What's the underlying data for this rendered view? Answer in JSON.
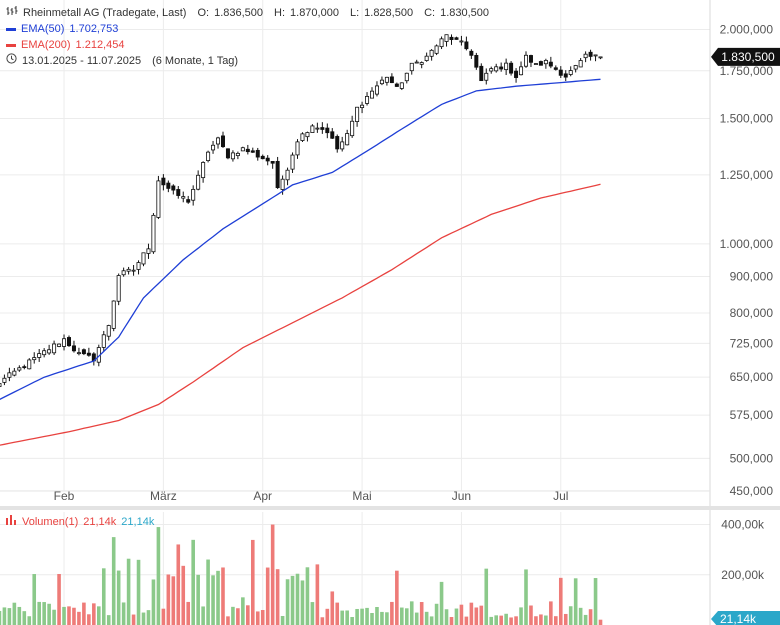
{
  "legend": {
    "title": "Rheinmetall AG (Tradegate, Last)",
    "o_label": "O:",
    "o_value": "1.836,500",
    "h_label": "H:",
    "h_value": "1.870,000",
    "l_label": "L:",
    "l_value": "1.828,500",
    "c_label": "C:",
    "c_value": "1.830,500",
    "ema50_label": "EMA(50)",
    "ema50_value": "1.702,753",
    "ema50_color": "#1f3fd6",
    "ema200_label": "EMA(200)",
    "ema200_value": "1.212,454",
    "ema200_color": "#e8423f",
    "range": "13.01.2025 - 11.07.2025",
    "range_detail": "(6 Monate, 1 Tag)"
  },
  "volume_legend": {
    "label": "Volumen(1)",
    "value_red": "21,14k",
    "value_green": "21,14k",
    "current_badge": "21,14k"
  },
  "chart_data": {
    "type": "candlestick",
    "price_axis": {
      "scale": "log",
      "range": [
        430,
        2200
      ],
      "ticks": [
        {
          "value": 2000,
          "label": "2.000,000"
        },
        {
          "value": 1750,
          "label": "1.750,000"
        },
        {
          "value": 1500,
          "label": "1.500,000"
        },
        {
          "value": 1250,
          "label": "1.250,000"
        },
        {
          "value": 1000,
          "label": "1.000,000"
        },
        {
          "value": 900,
          "label": "900,000"
        },
        {
          "value": 800,
          "label": "800,000"
        },
        {
          "value": 725,
          "label": "725,000"
        },
        {
          "value": 650,
          "label": "650,000"
        },
        {
          "value": 575,
          "label": "575,000"
        },
        {
          "value": 500,
          "label": "500,000"
        },
        {
          "value": 450,
          "label": "450,000"
        }
      ],
      "current_price_label": "1.830,500",
      "current_price": 1830.5
    },
    "x_axis": {
      "months": [
        {
          "label": "Feb",
          "index": 14
        },
        {
          "label": "März",
          "index": 34
        },
        {
          "label": "Apr",
          "index": 54
        },
        {
          "label": "Mai",
          "index": 74
        },
        {
          "label": "Jun",
          "index": 94
        },
        {
          "label": "Jul",
          "index": 114
        }
      ],
      "n_days": 123
    },
    "volume_axis": {
      "range": [
        0,
        450000
      ],
      "ticks": [
        {
          "value": 400000,
          "label": "400,00k"
        },
        {
          "value": 200000,
          "label": "200,00k"
        }
      ]
    },
    "anchors": [
      {
        "i": 0,
        "p": 632
      },
      {
        "i": 5,
        "p": 668
      },
      {
        "i": 10,
        "p": 705
      },
      {
        "i": 14,
        "p": 735
      },
      {
        "i": 17,
        "p": 700
      },
      {
        "i": 20,
        "p": 690
      },
      {
        "i": 23,
        "p": 770
      },
      {
        "i": 25,
        "p": 905
      },
      {
        "i": 28,
        "p": 920
      },
      {
        "i": 31,
        "p": 990
      },
      {
        "i": 33,
        "p": 1230
      },
      {
        "i": 36,
        "p": 1180
      },
      {
        "i": 39,
        "p": 1150
      },
      {
        "i": 41,
        "p": 1240
      },
      {
        "i": 43,
        "p": 1350
      },
      {
        "i": 45,
        "p": 1400
      },
      {
        "i": 47,
        "p": 1330
      },
      {
        "i": 50,
        "p": 1360
      },
      {
        "i": 53,
        "p": 1330
      },
      {
        "i": 56,
        "p": 1300
      },
      {
        "i": 57,
        "p": 1190
      },
      {
        "i": 59,
        "p": 1280
      },
      {
        "i": 61,
        "p": 1400
      },
      {
        "i": 64,
        "p": 1470
      },
      {
        "i": 67,
        "p": 1440
      },
      {
        "i": 69,
        "p": 1360
      },
      {
        "i": 71,
        "p": 1420
      },
      {
        "i": 73,
        "p": 1550
      },
      {
        "i": 76,
        "p": 1640
      },
      {
        "i": 79,
        "p": 1720
      },
      {
        "i": 81,
        "p": 1650
      },
      {
        "i": 84,
        "p": 1780
      },
      {
        "i": 87,
        "p": 1830
      },
      {
        "i": 89,
        "p": 1900
      },
      {
        "i": 91,
        "p": 1960
      },
      {
        "i": 94,
        "p": 1910
      },
      {
        "i": 96,
        "p": 1850
      },
      {
        "i": 98,
        "p": 1690
      },
      {
        "i": 100,
        "p": 1760
      },
      {
        "i": 103,
        "p": 1780
      },
      {
        "i": 105,
        "p": 1720
      },
      {
        "i": 107,
        "p": 1830
      },
      {
        "i": 109,
        "p": 1780
      },
      {
        "i": 111,
        "p": 1800
      },
      {
        "i": 113,
        "p": 1760
      },
      {
        "i": 115,
        "p": 1720
      },
      {
        "i": 117,
        "p": 1770
      },
      {
        "i": 119,
        "p": 1830
      },
      {
        "i": 122,
        "p": 1830.5
      }
    ],
    "ema50": [
      {
        "i": 0,
        "p": 600
      },
      {
        "i": 10,
        "p": 650
      },
      {
        "i": 20,
        "p": 685
      },
      {
        "i": 25,
        "p": 740
      },
      {
        "i": 30,
        "p": 840
      },
      {
        "i": 38,
        "p": 950
      },
      {
        "i": 46,
        "p": 1050
      },
      {
        "i": 55,
        "p": 1150
      },
      {
        "i": 60,
        "p": 1210
      },
      {
        "i": 68,
        "p": 1260
      },
      {
        "i": 75,
        "p": 1350
      },
      {
        "i": 82,
        "p": 1450
      },
      {
        "i": 90,
        "p": 1570
      },
      {
        "i": 97,
        "p": 1640
      },
      {
        "i": 105,
        "p": 1665
      },
      {
        "i": 112,
        "p": 1680
      },
      {
        "i": 122,
        "p": 1702.753
      }
    ],
    "ema200": [
      {
        "i": 0,
        "p": 520
      },
      {
        "i": 15,
        "p": 545
      },
      {
        "i": 25,
        "p": 565
      },
      {
        "i": 33,
        "p": 595
      },
      {
        "i": 40,
        "p": 640
      },
      {
        "i": 50,
        "p": 715
      },
      {
        "i": 60,
        "p": 775
      },
      {
        "i": 70,
        "p": 840
      },
      {
        "i": 80,
        "p": 920
      },
      {
        "i": 90,
        "p": 1020
      },
      {
        "i": 100,
        "p": 1100
      },
      {
        "i": 110,
        "p": 1160
      },
      {
        "i": 122,
        "p": 1212.454
      }
    ]
  }
}
